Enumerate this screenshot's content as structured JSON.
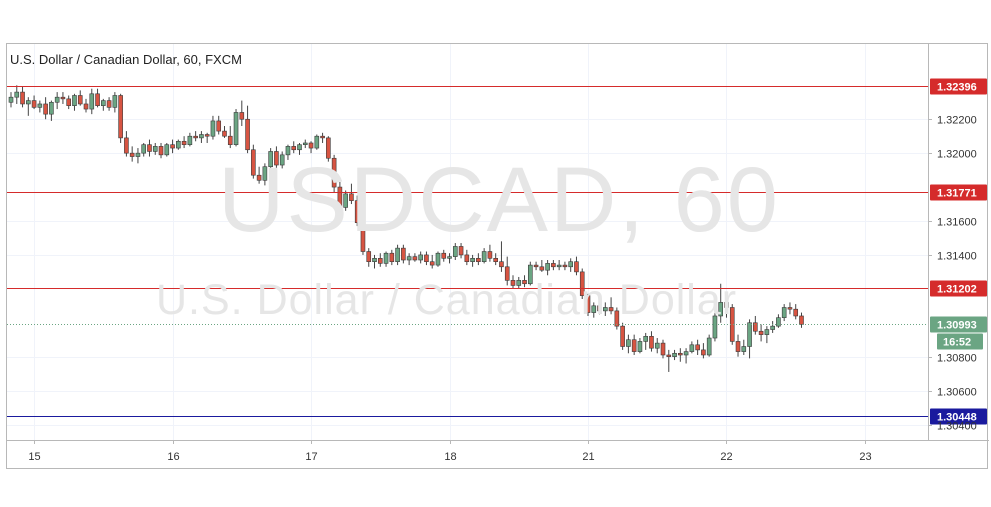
{
  "header": {
    "title": "U.S. Dollar / Canadian Dollar, 60, FXCM"
  },
  "watermark": {
    "symbol": "USDCAD, 60",
    "name": "U.S. Dollar / Canadian Dollar"
  },
  "colors": {
    "bull": "#6ba583",
    "bear": "#d75442",
    "level": "#d52b2b",
    "support": "#1a1a9e",
    "price": "#6ba583",
    "grid": "#f0f3fa"
  },
  "chart_data": {
    "type": "candlestick",
    "title": "U.S. Dollar / Canadian Dollar, 60, FXCM",
    "symbol": "USDCAD",
    "timeframe": "60",
    "ylim": [
      1.3035,
      1.3262
    ],
    "y_ticks": [
      "1.32200",
      "1.32000",
      "1.31600",
      "1.31400",
      "1.30800",
      "1.30600",
      "1.30400"
    ],
    "x_ticks": [
      {
        "label": "15",
        "bar": 4
      },
      {
        "label": "16",
        "bar": 28
      },
      {
        "label": "17",
        "bar": 52
      },
      {
        "label": "18",
        "bar": 76
      },
      {
        "label": "21",
        "bar": 100
      },
      {
        "label": "22",
        "bar": 124
      },
      {
        "label": "23",
        "bar": 148
      }
    ],
    "horizontal_levels": [
      {
        "value": 1.32396,
        "label": "1.32396",
        "kind": "resistance"
      },
      {
        "value": 1.31771,
        "label": "1.31771",
        "kind": "resistance"
      },
      {
        "value": 1.31202,
        "label": "1.31202",
        "kind": "resistance"
      },
      {
        "value": 1.30448,
        "label": "1.30448",
        "kind": "support"
      }
    ],
    "current_price": {
      "value": 1.30993,
      "label": "1.30993",
      "countdown": "16:52"
    },
    "candles": [
      [
        1.323,
        1.3236,
        1.3227,
        1.3233
      ],
      [
        1.3233,
        1.324,
        1.3229,
        1.3236
      ],
      [
        1.3236,
        1.3239,
        1.3227,
        1.3229
      ],
      [
        1.3229,
        1.3233,
        1.3222,
        1.3231
      ],
      [
        1.3231,
        1.3234,
        1.3226,
        1.3227
      ],
      [
        1.3227,
        1.3231,
        1.3224,
        1.3229
      ],
      [
        1.3229,
        1.3233,
        1.322,
        1.3223
      ],
      [
        1.3223,
        1.3231,
        1.3219,
        1.323
      ],
      [
        1.323,
        1.3236,
        1.3226,
        1.3233
      ],
      [
        1.3233,
        1.3236,
        1.3229,
        1.3232
      ],
      [
        1.3232,
        1.3234,
        1.3226,
        1.3228
      ],
      [
        1.3228,
        1.3235,
        1.3225,
        1.3234
      ],
      [
        1.3234,
        1.3237,
        1.3228,
        1.3229
      ],
      [
        1.3229,
        1.3232,
        1.3224,
        1.3226
      ],
      [
        1.3226,
        1.3238,
        1.3223,
        1.3235
      ],
      [
        1.3235,
        1.3238,
        1.3227,
        1.3228
      ],
      [
        1.3228,
        1.3232,
        1.3225,
        1.3231
      ],
      [
        1.3231,
        1.3233,
        1.3225,
        1.3227
      ],
      [
        1.3227,
        1.3236,
        1.3224,
        1.3234
      ],
      [
        1.3234,
        1.3235,
        1.3206,
        1.3209
      ],
      [
        1.3209,
        1.3213,
        1.3198,
        1.32
      ],
      [
        1.32,
        1.3204,
        1.3195,
        1.3198
      ],
      [
        1.3198,
        1.3203,
        1.3194,
        1.32
      ],
      [
        1.32,
        1.3206,
        1.3198,
        1.3205
      ],
      [
        1.3205,
        1.3208,
        1.3198,
        1.3201
      ],
      [
        1.3201,
        1.3206,
        1.3199,
        1.3204
      ],
      [
        1.3204,
        1.3206,
        1.3197,
        1.3199
      ],
      [
        1.3199,
        1.3206,
        1.3198,
        1.3205
      ],
      [
        1.3205,
        1.3208,
        1.32,
        1.3203
      ],
      [
        1.3203,
        1.3208,
        1.3202,
        1.3207
      ],
      [
        1.3207,
        1.321,
        1.3203,
        1.3205
      ],
      [
        1.3205,
        1.3212,
        1.3204,
        1.321
      ],
      [
        1.321,
        1.3213,
        1.3207,
        1.3209
      ],
      [
        1.3209,
        1.3213,
        1.3206,
        1.3211
      ],
      [
        1.3211,
        1.3212,
        1.3206,
        1.321
      ],
      [
        1.321,
        1.3222,
        1.3208,
        1.3219
      ],
      [
        1.3219,
        1.3222,
        1.3211,
        1.3213
      ],
      [
        1.3213,
        1.3216,
        1.3209,
        1.321
      ],
      [
        1.321,
        1.3216,
        1.3203,
        1.3205
      ],
      [
        1.3205,
        1.3226,
        1.3204,
        1.3224
      ],
      [
        1.3224,
        1.3231,
        1.3216,
        1.322
      ],
      [
        1.322,
        1.3228,
        1.32,
        1.3202
      ],
      [
        1.3202,
        1.3205,
        1.3185,
        1.3187
      ],
      [
        1.3187,
        1.3192,
        1.3182,
        1.3184
      ],
      [
        1.3184,
        1.3194,
        1.3181,
        1.3192
      ],
      [
        1.3192,
        1.3203,
        1.3188,
        1.3201
      ],
      [
        1.3201,
        1.3204,
        1.319,
        1.3193
      ],
      [
        1.3193,
        1.3201,
        1.3191,
        1.3199
      ],
      [
        1.3199,
        1.3205,
        1.3196,
        1.3204
      ],
      [
        1.3204,
        1.3207,
        1.32,
        1.3202
      ],
      [
        1.3202,
        1.3206,
        1.3199,
        1.3205
      ],
      [
        1.3205,
        1.3208,
        1.3203,
        1.3206
      ],
      [
        1.3206,
        1.3207,
        1.32,
        1.3203
      ],
      [
        1.3203,
        1.3211,
        1.3202,
        1.321
      ],
      [
        1.321,
        1.3212,
        1.3206,
        1.3209
      ],
      [
        1.3209,
        1.321,
        1.3195,
        1.3197
      ],
      [
        1.3197,
        1.3199,
        1.3177,
        1.318
      ],
      [
        1.318,
        1.3183,
        1.3165,
        1.3168
      ],
      [
        1.3168,
        1.3178,
        1.3166,
        1.3176
      ],
      [
        1.3176,
        1.3182,
        1.317,
        1.3172
      ],
      [
        1.3172,
        1.3175,
        1.3157,
        1.3159
      ],
      [
        1.3159,
        1.3161,
        1.314,
        1.3142
      ],
      [
        1.3142,
        1.3144,
        1.3133,
        1.3136
      ],
      [
        1.3136,
        1.314,
        1.3132,
        1.3138
      ],
      [
        1.3138,
        1.3141,
        1.3133,
        1.3135
      ],
      [
        1.3135,
        1.3142,
        1.3133,
        1.3141
      ],
      [
        1.3141,
        1.3143,
        1.3134,
        1.3136
      ],
      [
        1.3136,
        1.3146,
        1.3134,
        1.3144
      ],
      [
        1.3144,
        1.3146,
        1.3135,
        1.3137
      ],
      [
        1.3137,
        1.3141,
        1.3134,
        1.3139
      ],
      [
        1.3139,
        1.3141,
        1.3136,
        1.3137
      ],
      [
        1.3137,
        1.3142,
        1.3135,
        1.314
      ],
      [
        1.314,
        1.3142,
        1.3134,
        1.3136
      ],
      [
        1.3136,
        1.314,
        1.3132,
        1.3134
      ],
      [
        1.3134,
        1.3142,
        1.3133,
        1.3141
      ],
      [
        1.3141,
        1.3143,
        1.3136,
        1.3138
      ],
      [
        1.3138,
        1.3141,
        1.3135,
        1.3139
      ],
      [
        1.3139,
        1.3147,
        1.3137,
        1.3145
      ],
      [
        1.3145,
        1.3147,
        1.3138,
        1.314
      ],
      [
        1.314,
        1.3143,
        1.3134,
        1.3136
      ],
      [
        1.3136,
        1.314,
        1.3133,
        1.3138
      ],
      [
        1.3138,
        1.3141,
        1.3134,
        1.3136
      ],
      [
        1.3136,
        1.3144,
        1.3135,
        1.3142
      ],
      [
        1.3142,
        1.3146,
        1.3136,
        1.3138
      ],
      [
        1.3138,
        1.3141,
        1.3134,
        1.3136
      ],
      [
        1.3136,
        1.3148,
        1.313,
        1.3133
      ],
      [
        1.3133,
        1.3139,
        1.3122,
        1.3125
      ],
      [
        1.3125,
        1.3128,
        1.312,
        1.3122
      ],
      [
        1.3122,
        1.3127,
        1.312,
        1.3125
      ],
      [
        1.3125,
        1.3128,
        1.3121,
        1.3123
      ],
      [
        1.3123,
        1.3136,
        1.3122,
        1.3134
      ],
      [
        1.3134,
        1.3136,
        1.3131,
        1.3133
      ],
      [
        1.3133,
        1.3137,
        1.313,
        1.3131
      ],
      [
        1.3131,
        1.3137,
        1.3128,
        1.3135
      ],
      [
        1.3135,
        1.3137,
        1.3131,
        1.3133
      ],
      [
        1.3133,
        1.3137,
        1.3131,
        1.3134
      ],
      [
        1.3134,
        1.3136,
        1.3131,
        1.3133
      ],
      [
        1.3133,
        1.3138,
        1.313,
        1.3136
      ],
      [
        1.3136,
        1.3139,
        1.3128,
        1.313
      ],
      [
        1.313,
        1.3132,
        1.3114,
        1.3116
      ],
      [
        1.3116,
        1.3117,
        1.3104,
        1.3106
      ],
      [
        1.3106,
        1.3112,
        1.3103,
        1.311
      ],
      [
        1.311,
        1.3114,
        1.3105,
        1.3107
      ],
      [
        1.3107,
        1.3112,
        1.3104,
        1.3109
      ],
      [
        1.3109,
        1.3115,
        1.3105,
        1.3107
      ],
      [
        1.3107,
        1.3109,
        1.3096,
        1.3098
      ],
      [
        1.3098,
        1.31,
        1.3084,
        1.3086
      ],
      [
        1.3086,
        1.3093,
        1.3082,
        1.309
      ],
      [
        1.309,
        1.3093,
        1.3081,
        1.3083
      ],
      [
        1.3083,
        1.3091,
        1.3082,
        1.3089
      ],
      [
        1.3089,
        1.3094,
        1.3084,
        1.3092
      ],
      [
        1.3092,
        1.3095,
        1.3083,
        1.3085
      ],
      [
        1.3085,
        1.3091,
        1.3082,
        1.3088
      ],
      [
        1.3088,
        1.309,
        1.3079,
        1.3081
      ],
      [
        1.3081,
        1.3084,
        1.3071,
        1.308
      ],
      [
        1.308,
        1.3084,
        1.3078,
        1.3082
      ],
      [
        1.3082,
        1.3085,
        1.3077,
        1.3081
      ],
      [
        1.3081,
        1.3085,
        1.3076,
        1.3083
      ],
      [
        1.3083,
        1.3089,
        1.3082,
        1.3087
      ],
      [
        1.3087,
        1.309,
        1.3081,
        1.3084
      ],
      [
        1.3084,
        1.3088,
        1.3079,
        1.3081
      ],
      [
        1.3081,
        1.3093,
        1.308,
        1.3091
      ],
      [
        1.3091,
        1.3106,
        1.3089,
        1.3104
      ],
      [
        1.3104,
        1.3123,
        1.31,
        1.3112
      ],
      [
        1.3112,
        1.3118,
        1.3103,
        1.3109
      ],
      [
        1.3109,
        1.3111,
        1.3087,
        1.3089
      ],
      [
        1.3089,
        1.3093,
        1.308,
        1.3083
      ],
      [
        1.3083,
        1.309,
        1.3081,
        1.3086
      ],
      [
        1.3086,
        1.3102,
        1.3079,
        1.31
      ],
      [
        1.31,
        1.3104,
        1.3093,
        1.3095
      ],
      [
        1.3095,
        1.3099,
        1.3089,
        1.3093
      ],
      [
        1.3093,
        1.3098,
        1.3088,
        1.3096
      ],
      [
        1.3096,
        1.3101,
        1.3094,
        1.3098
      ],
      [
        1.3098,
        1.3105,
        1.3097,
        1.3103
      ],
      [
        1.3103,
        1.3111,
        1.3101,
        1.3109
      ],
      [
        1.3109,
        1.3112,
        1.3105,
        1.3108
      ],
      [
        1.3108,
        1.3111,
        1.3102,
        1.3104
      ],
      [
        1.3104,
        1.3106,
        1.3097,
        1.3099
      ]
    ]
  }
}
